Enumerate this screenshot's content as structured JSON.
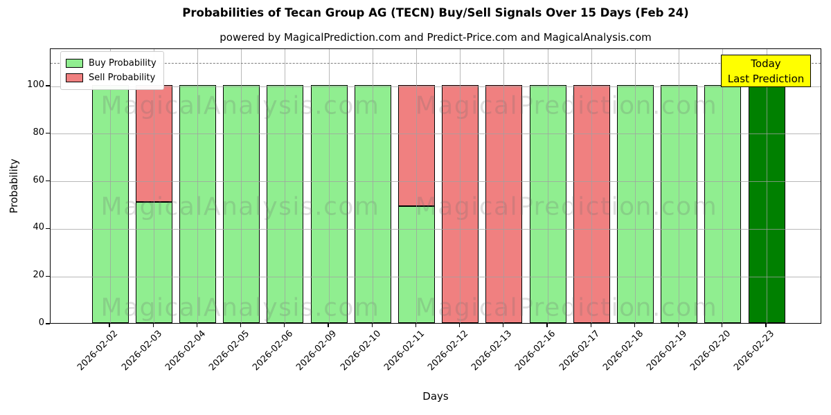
{
  "title": "Probabilities of Tecan Group AG (TECN) Buy/Sell Signals Over 15 Days (Feb 24)",
  "subtitle": "powered by MagicalPrediction.com and Predict-Price.com and MagicalAnalysis.com",
  "watermarks": {
    "left": "MagicalAnalysis.com",
    "right": "MagicalPrediction.com"
  },
  "annotation": {
    "line1": "Today",
    "line2": "Last Prediction",
    "bg_color": "#FFFF00"
  },
  "legend": [
    {
      "label": "Buy Probability",
      "color": "#90EE90"
    },
    {
      "label": "Sell Probability",
      "color": "#F08080"
    }
  ],
  "chart_data": {
    "type": "bar",
    "stacked": true,
    "title": "Probabilities of Tecan Group AG (TECN) Buy/Sell Signals Over 15 Days (Feb 24)",
    "xlabel": "Days",
    "ylabel": "Probability",
    "categories": [
      "2026-02-02",
      "2026-02-03",
      "2026-02-04",
      "2026-02-05",
      "2026-02-06",
      "2026-02-09",
      "2026-02-10",
      "2026-02-11",
      "2026-02-12",
      "2026-02-13",
      "2026-02-16",
      "2026-02-17",
      "2026-02-18",
      "2026-02-19",
      "2026-02-20",
      "2026-02-23"
    ],
    "series": [
      {
        "name": "Buy Probability",
        "color": "#90EE90",
        "values": [
          100,
          51,
          100,
          100,
          100,
          100,
          100,
          49,
          0,
          0,
          100,
          0,
          100,
          100,
          100,
          100
        ]
      },
      {
        "name": "Sell Probability",
        "color": "#F08080",
        "values": [
          0,
          49,
          0,
          0,
          0,
          0,
          0,
          51,
          100,
          100,
          0,
          100,
          0,
          0,
          0,
          0
        ]
      }
    ],
    "today_bar": {
      "index": 15,
      "color": "#008000",
      "label": "Today Last Prediction"
    },
    "yticks": [
      0,
      20,
      40,
      60,
      80,
      100
    ],
    "ylim": [
      0,
      116
    ],
    "dashed_line_y": 110,
    "grid": true,
    "grid_color": "#A0A0A0",
    "bar_edge_color": "#000000",
    "legend_position": "top-left"
  }
}
